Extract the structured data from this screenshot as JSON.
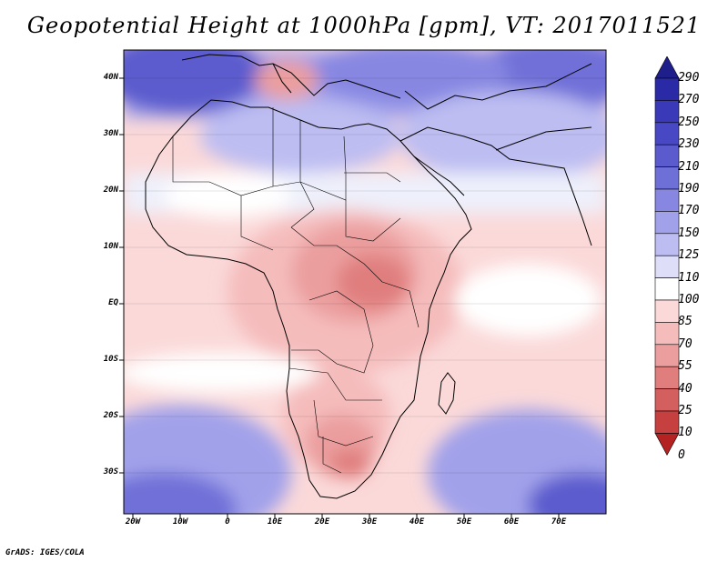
{
  "title": "Geopotential Height at 1000hPa [gpm], VT: 2017011521",
  "lat_labels": [
    "40N",
    "30N",
    "20N",
    "10N",
    "EQ",
    "10S",
    "20S",
    "30S"
  ],
  "lon_labels": [
    "20W",
    "10W",
    "0",
    "10E",
    "20E",
    "30E",
    "40E",
    "50E",
    "60E",
    "70E"
  ],
  "colorbar_levels": [
    "290",
    "270",
    "250",
    "230",
    "210",
    "190",
    "170",
    "150",
    "125",
    "110",
    "100",
    "85",
    "70",
    "55",
    "40",
    "25",
    "10",
    "0"
  ],
  "colorbar_colors": [
    "#1f1f8c",
    "#2a2aa6",
    "#3a3ab8",
    "#4848c4",
    "#5b5bce",
    "#6f6fd8",
    "#8787e2",
    "#a1a1ea",
    "#bdbdf2",
    "#dedef8",
    "#ffffff",
    "#fbd9d9",
    "#f5bcbc",
    "#eb9e9e",
    "#e07e7e",
    "#d45f5f",
    "#c74040",
    "#b42222"
  ],
  "credit": "GrADS: IGES/COLA"
}
